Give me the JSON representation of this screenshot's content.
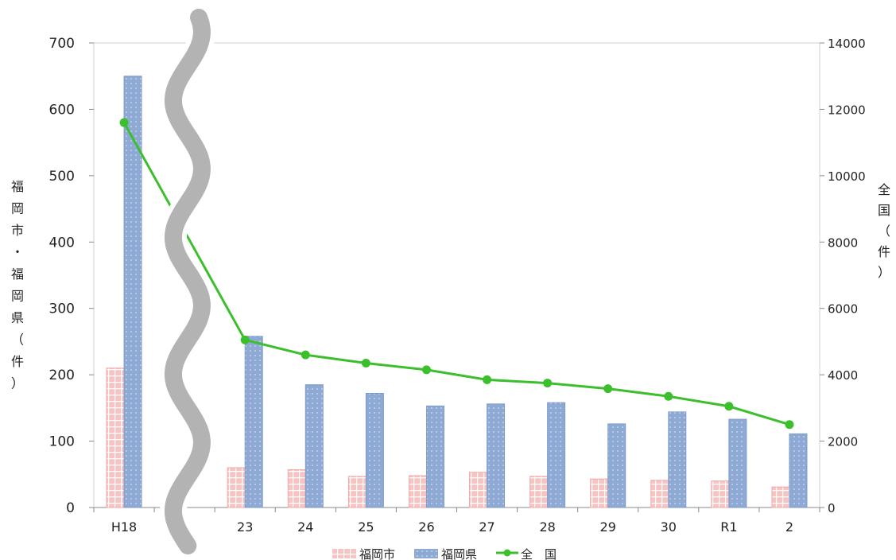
{
  "chart_data": {
    "type": "bar",
    "categories": [
      "H18",
      "",
      "23",
      "24",
      "25",
      "26",
      "27",
      "28",
      "29",
      "30",
      "R1",
      "2"
    ],
    "series": [
      {
        "name": "福岡市",
        "type": "bar",
        "axis": "left",
        "color": "#f4b8b8",
        "values": [
          210,
          null,
          60,
          57,
          47,
          48,
          53,
          47,
          43,
          41,
          40,
          31
        ]
      },
      {
        "name": "福岡県",
        "type": "bar",
        "axis": "left",
        "color": "#8eaad4",
        "values": [
          650,
          null,
          258,
          185,
          172,
          153,
          156,
          158,
          126,
          144,
          133,
          111
        ]
      },
      {
        "name": "全　国",
        "type": "line",
        "axis": "right",
        "color": "#3cbf2c",
        "values": [
          11600,
          null,
          5050,
          4600,
          4350,
          4150,
          3850,
          3750,
          3580,
          3350,
          3050,
          2500
        ]
      }
    ],
    "ylabel": [
      "福",
      "岡",
      "市",
      "・",
      "福",
      "岡",
      "県",
      "（",
      "件",
      "）"
    ],
    "ylabel_right": [
      "全",
      "国",
      "（",
      "件",
      "）"
    ],
    "y_left": {
      "lim": [
        0,
        700
      ],
      "ticks": [
        "0",
        "100",
        "200",
        "300",
        "400",
        "500",
        "600",
        "700"
      ]
    },
    "y_right": {
      "lim": [
        0,
        14000
      ],
      "ticks": [
        "0",
        "2000",
        "4000",
        "6000",
        "8000",
        "10000",
        "12000",
        "14000"
      ]
    },
    "axis_break": "between H18 and 23",
    "legend": "bottom"
  }
}
